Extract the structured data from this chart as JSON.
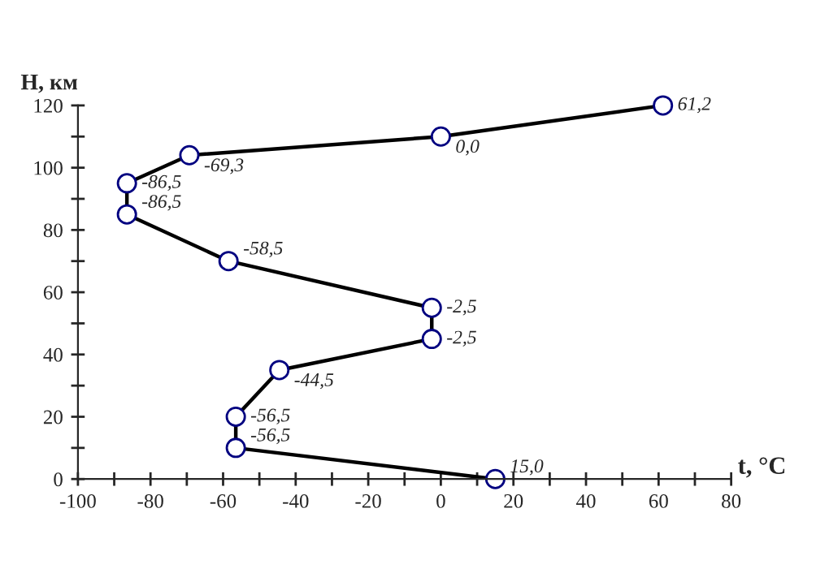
{
  "chart_data": {
    "type": "line",
    "xlabel": "t, °C",
    "ylabel": "H, км",
    "x": [
      15.0,
      -56.5,
      -56.5,
      -44.5,
      -2.5,
      -2.5,
      -58.5,
      -86.5,
      -86.5,
      -69.3,
      0.0,
      61.2
    ],
    "series": [
      {
        "color": "#000000",
        "values": [
          0,
          10,
          20,
          35,
          45,
          55,
          70,
          85,
          95,
          104,
          110,
          120
        ]
      }
    ],
    "annotations": [
      {
        "text": "15,0",
        "x": 15.0,
        "y": 0
      },
      {
        "text": "-56,5",
        "x": -56.5,
        "y": 10
      },
      {
        "text": "-56,5",
        "x": -56.5,
        "y": 20
      },
      {
        "text": "-44,5",
        "x": -44.5,
        "y": 35
      },
      {
        "text": "-2,5",
        "x": -2.5,
        "y": 45
      },
      {
        "text": "-2,5",
        "x": -2.5,
        "y": 55
      },
      {
        "text": "-58,5",
        "x": -58.5,
        "y": 70
      },
      {
        "text": "-86,5",
        "x": -86.5,
        "y": 85
      },
      {
        "text": "-86,5",
        "x": -86.5,
        "y": 95
      },
      {
        "text": "-69,3",
        "x": -69.3,
        "y": 104
      },
      {
        "text": "0,0",
        "x": 0.0,
        "y": 110
      },
      {
        "text": "61,2",
        "x": 61.2,
        "y": 120
      }
    ],
    "marker": "circle",
    "line_style": "solid",
    "grid": false,
    "legend": false,
    "xlim": [
      -100,
      80
    ],
    "ylim": [
      0,
      120
    ],
    "xticks": [
      -100,
      {
        "value": -90,
        "label": null
      },
      -80,
      {
        "value": -70,
        "label": null
      },
      -60,
      {
        "value": -50,
        "label": null
      },
      -40,
      {
        "value": -30,
        "label": null
      },
      -20,
      {
        "value": -10,
        "label": null
      },
      0,
      {
        "value": 10,
        "label": null
      },
      20,
      {
        "value": 30,
        "label": null
      },
      40,
      {
        "value": 50,
        "label": null
      },
      60,
      {
        "value": 70,
        "label": null
      },
      80
    ],
    "yticks": [
      0,
      {
        "value": 10,
        "label": null
      },
      20,
      {
        "value": 30,
        "label": null
      },
      40,
      {
        "value": 50,
        "label": null
      },
      60,
      {
        "value": 70,
        "label": null
      },
      80,
      {
        "value": 90,
        "label": null
      },
      100,
      {
        "value": 110,
        "label": null
      },
      120
    ]
  }
}
